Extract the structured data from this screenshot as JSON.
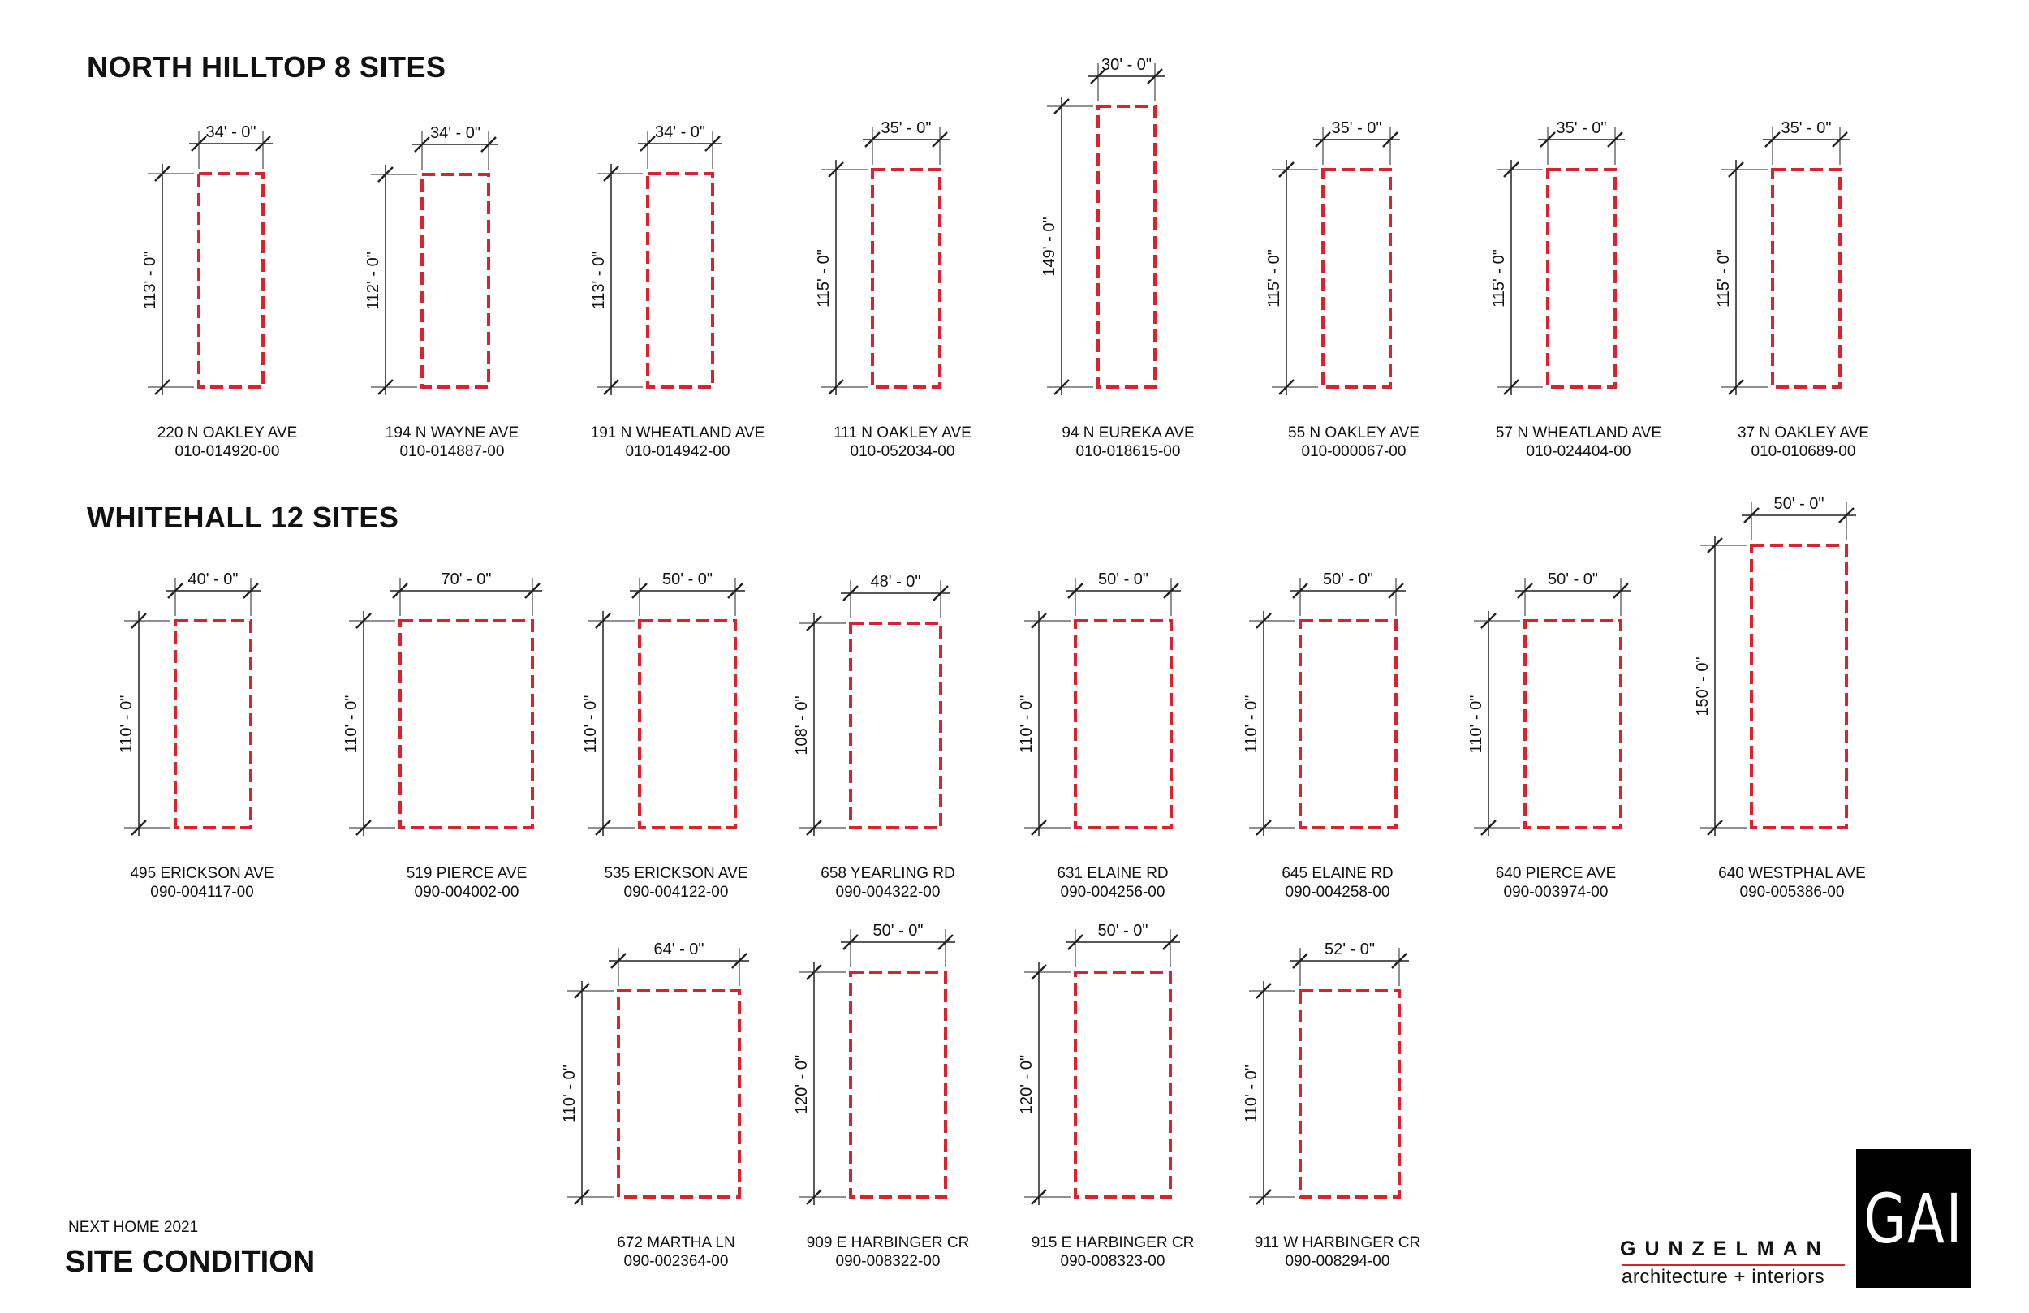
{
  "sections": [
    {
      "title": "NORTH HILLTOP 8 SITES"
    },
    {
      "title": "WHITEHALL 12 SITES"
    }
  ],
  "sites": [
    {
      "address": "220 N OAKLEY AVE",
      "parcel": "010-014920-00",
      "width": "34' - 0\"",
      "depth": "113' - 0\""
    },
    {
      "address": "194 N WAYNE AVE",
      "parcel": "010-014887-00",
      "width": "34' - 0\"",
      "depth": "112' - 0\""
    },
    {
      "address": "191 N WHEATLAND AVE",
      "parcel": "010-014942-00",
      "width": "34' - 0\"",
      "depth": "113' - 0\""
    },
    {
      "address": "111 N OAKLEY AVE",
      "parcel": "010-052034-00",
      "width": "35' - 0\"",
      "depth": "115' - 0\""
    },
    {
      "address": "94 N EUREKA AVE",
      "parcel": "010-018615-00",
      "width": "30' - 0\"",
      "depth": "149' - 0\""
    },
    {
      "address": "55 N OAKLEY AVE",
      "parcel": "010-000067-00",
      "width": "35' - 0\"",
      "depth": "115' - 0\""
    },
    {
      "address": "57 N WHEATLAND AVE",
      "parcel": "010-024404-00",
      "width": "35' - 0\"",
      "depth": "115' - 0\""
    },
    {
      "address": "37 N OAKLEY AVE",
      "parcel": "010-010689-00",
      "width": "35' - 0\"",
      "depth": "115' - 0\""
    },
    {
      "address": "495 ERICKSON AVE",
      "parcel": "090-004117-00",
      "width": "40' - 0\"",
      "depth": "110' - 0\""
    },
    {
      "address": "519 PIERCE AVE",
      "parcel": "090-004002-00",
      "width": "70' - 0\"",
      "depth": "110' - 0\""
    },
    {
      "address": "535 ERICKSON AVE",
      "parcel": "090-004122-00",
      "width": "50' - 0\"",
      "depth": "110' - 0\""
    },
    {
      "address": "658 YEARLING RD",
      "parcel": "090-004322-00",
      "width": "48' - 0\"",
      "depth": "108' - 0\""
    },
    {
      "address": "631 ELAINE RD",
      "parcel": "090-004256-00",
      "width": "50' - 0\"",
      "depth": "110' - 0\""
    },
    {
      "address": "645 ELAINE RD",
      "parcel": "090-004258-00",
      "width": "50' - 0\"",
      "depth": "110' - 0\""
    },
    {
      "address": "640 PIERCE AVE",
      "parcel": "090-003974-00",
      "width": "50' - 0\"",
      "depth": "110' - 0\""
    },
    {
      "address": "640 WESTPHAL AVE",
      "parcel": "090-005386-00",
      "width": "50' - 0\"",
      "depth": "150' - 0\""
    },
    {
      "address": "672 MARTHA LN",
      "parcel": "090-002364-00",
      "width": "64' - 0\"",
      "depth": "110' - 0\""
    },
    {
      "address": "909 E HARBINGER CR",
      "parcel": "090-008322-00",
      "width": "50' - 0\"",
      "depth": "120' - 0\""
    },
    {
      "address": "915 E HARBINGER CR",
      "parcel": "090-008323-00",
      "width": "50' - 0\"",
      "depth": "120' - 0\""
    },
    {
      "address": "911 W HARBINGER CR",
      "parcel": "090-008294-00",
      "width": "52' - 0\"",
      "depth": "110' - 0\""
    }
  ],
  "footer": {
    "project": "NEXT HOME 2021",
    "sheet_title": "SITE CONDITION"
  },
  "brand": {
    "name": "GUNZELMAN",
    "tagline": "architecture + interiors",
    "logo": "GAI"
  },
  "colors": {
    "boundary": "#d9232d",
    "dimension_line": "#222222",
    "logo_bg": "#000000"
  }
}
